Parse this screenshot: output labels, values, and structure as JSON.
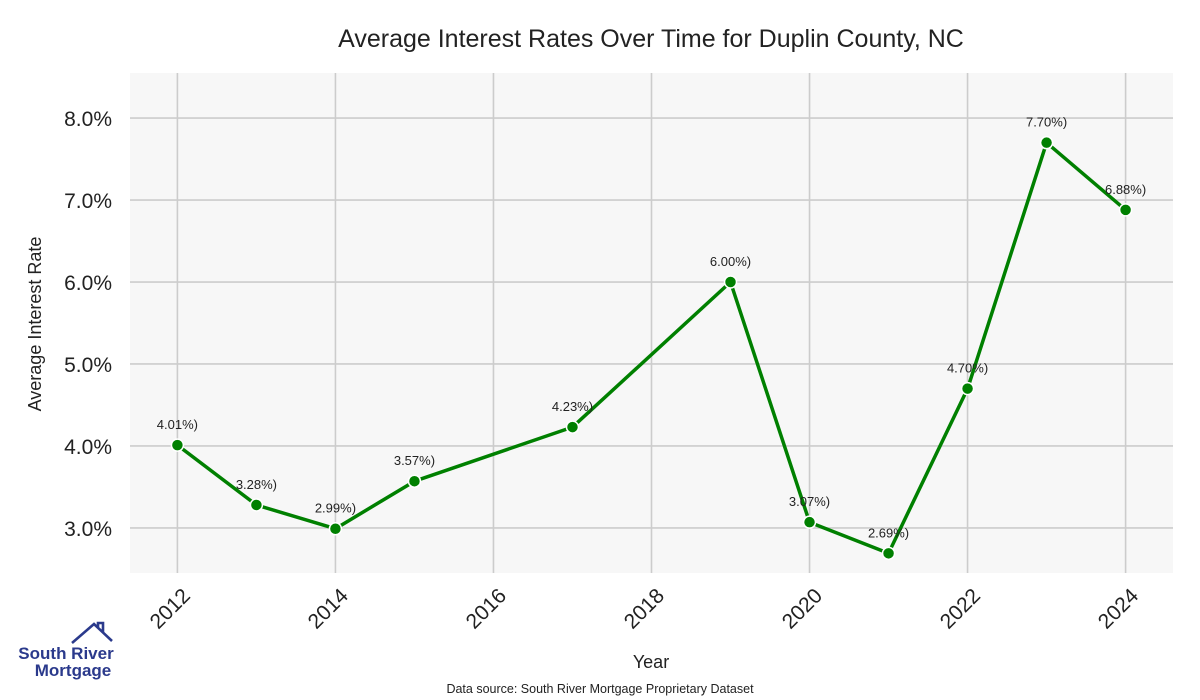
{
  "chart_data": {
    "type": "line",
    "title": "Average Interest Rates Over Time for Duplin County, NC",
    "xlabel": "Year",
    "ylabel": "Average Interest Rate",
    "xlim": [
      2011.4,
      2024.6
    ],
    "ylim": [
      2.45,
      8.55
    ],
    "x_ticks": [
      2012,
      2014,
      2016,
      2018,
      2020,
      2022,
      2024
    ],
    "y_ticks": [
      3.0,
      4.0,
      5.0,
      6.0,
      7.0,
      8.0
    ],
    "y_tick_labels": [
      "3.0%",
      "4.0%",
      "5.0%",
      "6.0%",
      "7.0%",
      "8.0%"
    ],
    "grid": true,
    "x": [
      2012,
      2013,
      2014,
      2015,
      2017,
      2019,
      2020,
      2021,
      2022,
      2023,
      2024
    ],
    "values": [
      4.01,
      3.28,
      2.99,
      3.57,
      4.23,
      6.0,
      3.07,
      2.69,
      4.7,
      7.7,
      6.88
    ],
    "data_labels": [
      "4.01%)",
      "3.28%)",
      "2.99%)",
      "3.57%)",
      "4.23%)",
      "6.00%)",
      "3.07%)",
      "2.69%)",
      "4.70%)",
      "7.70%)",
      "6.88%)"
    ],
    "line_color": "#008000",
    "plot_bg": "#f7f7f7",
    "grid_color": "#cccccc"
  },
  "logo": {
    "line1": "South River",
    "line2": "Mortgage",
    "color": "#2b3a8c"
  },
  "footer": {
    "source": "Data source: South River Mortgage Proprietary Dataset"
  }
}
